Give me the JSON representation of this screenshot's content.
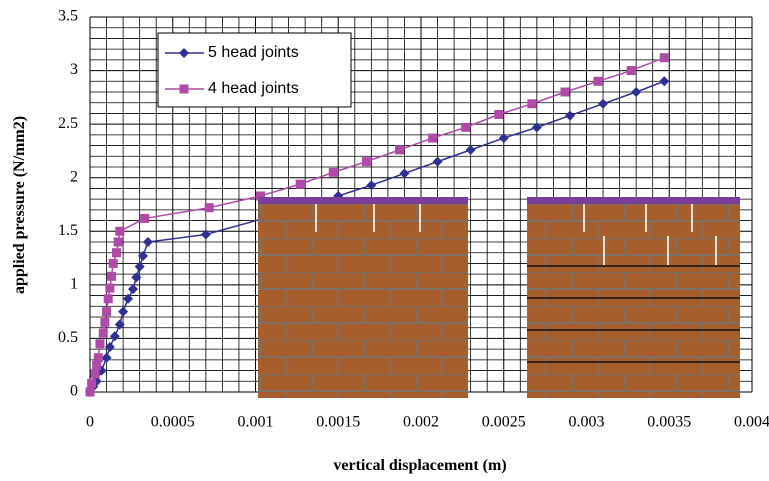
{
  "chart_data": {
    "type": "line",
    "xlabel": "vertical displacement (m)",
    "ylabel": "applied pressure (N/mm2)",
    "xlim": [
      0,
      0.004
    ],
    "ylim": [
      0,
      3.5
    ],
    "xticks": [
      0,
      0.0005,
      0.001,
      0.0015,
      0.002,
      0.0025,
      0.003,
      0.0035,
      0.004
    ],
    "yticks": [
      0,
      0.5,
      1,
      1.5,
      2,
      2.5,
      3,
      3.5
    ],
    "x_minor_ticks": [
      0.0001,
      0.0002,
      0.0003,
      0.0004,
      0.0006,
      0.0007,
      0.0008,
      0.0009,
      0.0011,
      0.0012,
      0.0013,
      0.0014,
      0.0016,
      0.0017,
      0.0018,
      0.0019,
      0.0021,
      0.0022,
      0.0023,
      0.0024,
      0.0026,
      0.0027,
      0.0028,
      0.0029,
      0.0031,
      0.0032,
      0.0033,
      0.0034,
      0.0036,
      0.0037,
      0.0038,
      0.0039
    ],
    "y_minor_ticks": [
      0.1,
      0.2,
      0.3,
      0.4,
      0.6,
      0.7,
      0.8,
      0.9,
      1.1,
      1.2,
      1.3,
      1.4,
      1.6,
      1.7,
      1.8,
      1.9,
      2.1,
      2.2,
      2.3,
      2.4,
      2.6,
      2.7,
      2.8,
      2.9,
      3.1,
      3.2,
      3.3,
      3.4
    ],
    "grid": true,
    "legend": "upper-left",
    "series": [
      {
        "name": "5 head joints",
        "color": "#2e3192",
        "marker": "diamond",
        "x": [
          0,
          2e-05,
          4e-05,
          7e-05,
          0.0001,
          0.00012,
          0.00015,
          0.00018,
          0.0002,
          0.00023,
          0.00026,
          0.00028,
          0.0003,
          0.00032,
          0.00035,
          0.0007,
          0.00105,
          0.0013,
          0.0015,
          0.0017,
          0.0019,
          0.0021,
          0.0023,
          0.0025,
          0.0027,
          0.0029,
          0.0031,
          0.0033,
          0.00347
        ],
        "values": [
          0,
          0.05,
          0.1,
          0.2,
          0.32,
          0.42,
          0.52,
          0.63,
          0.75,
          0.87,
          0.96,
          1.07,
          1.17,
          1.27,
          1.4,
          1.47,
          1.62,
          1.72,
          1.83,
          1.93,
          2.04,
          2.15,
          2.26,
          2.37,
          2.47,
          2.58,
          2.69,
          2.8,
          2.9
        ]
      },
      {
        "name": "4 head joints",
        "color": "#b04aa8",
        "marker": "square",
        "x": [
          0,
          1e-05,
          3e-05,
          4e-05,
          5e-05,
          6e-05,
          8e-05,
          9e-05,
          0.0001,
          0.00011,
          0.00012,
          0.00013,
          0.00014,
          0.00016,
          0.00017,
          0.00018,
          0.00033,
          0.00072,
          0.00103,
          0.00127,
          0.00147,
          0.00167,
          0.00187,
          0.00207,
          0.00227,
          0.00247,
          0.00267,
          0.00287,
          0.00307,
          0.00327,
          0.00347
        ],
        "values": [
          0,
          0.08,
          0.17,
          0.25,
          0.32,
          0.45,
          0.55,
          0.65,
          0.75,
          0.87,
          0.97,
          1.08,
          1.2,
          1.3,
          1.4,
          1.5,
          1.62,
          1.72,
          1.83,
          1.94,
          2.05,
          2.15,
          2.26,
          2.37,
          2.47,
          2.59,
          2.69,
          2.8,
          2.9,
          3.0,
          3.12
        ]
      }
    ]
  }
}
